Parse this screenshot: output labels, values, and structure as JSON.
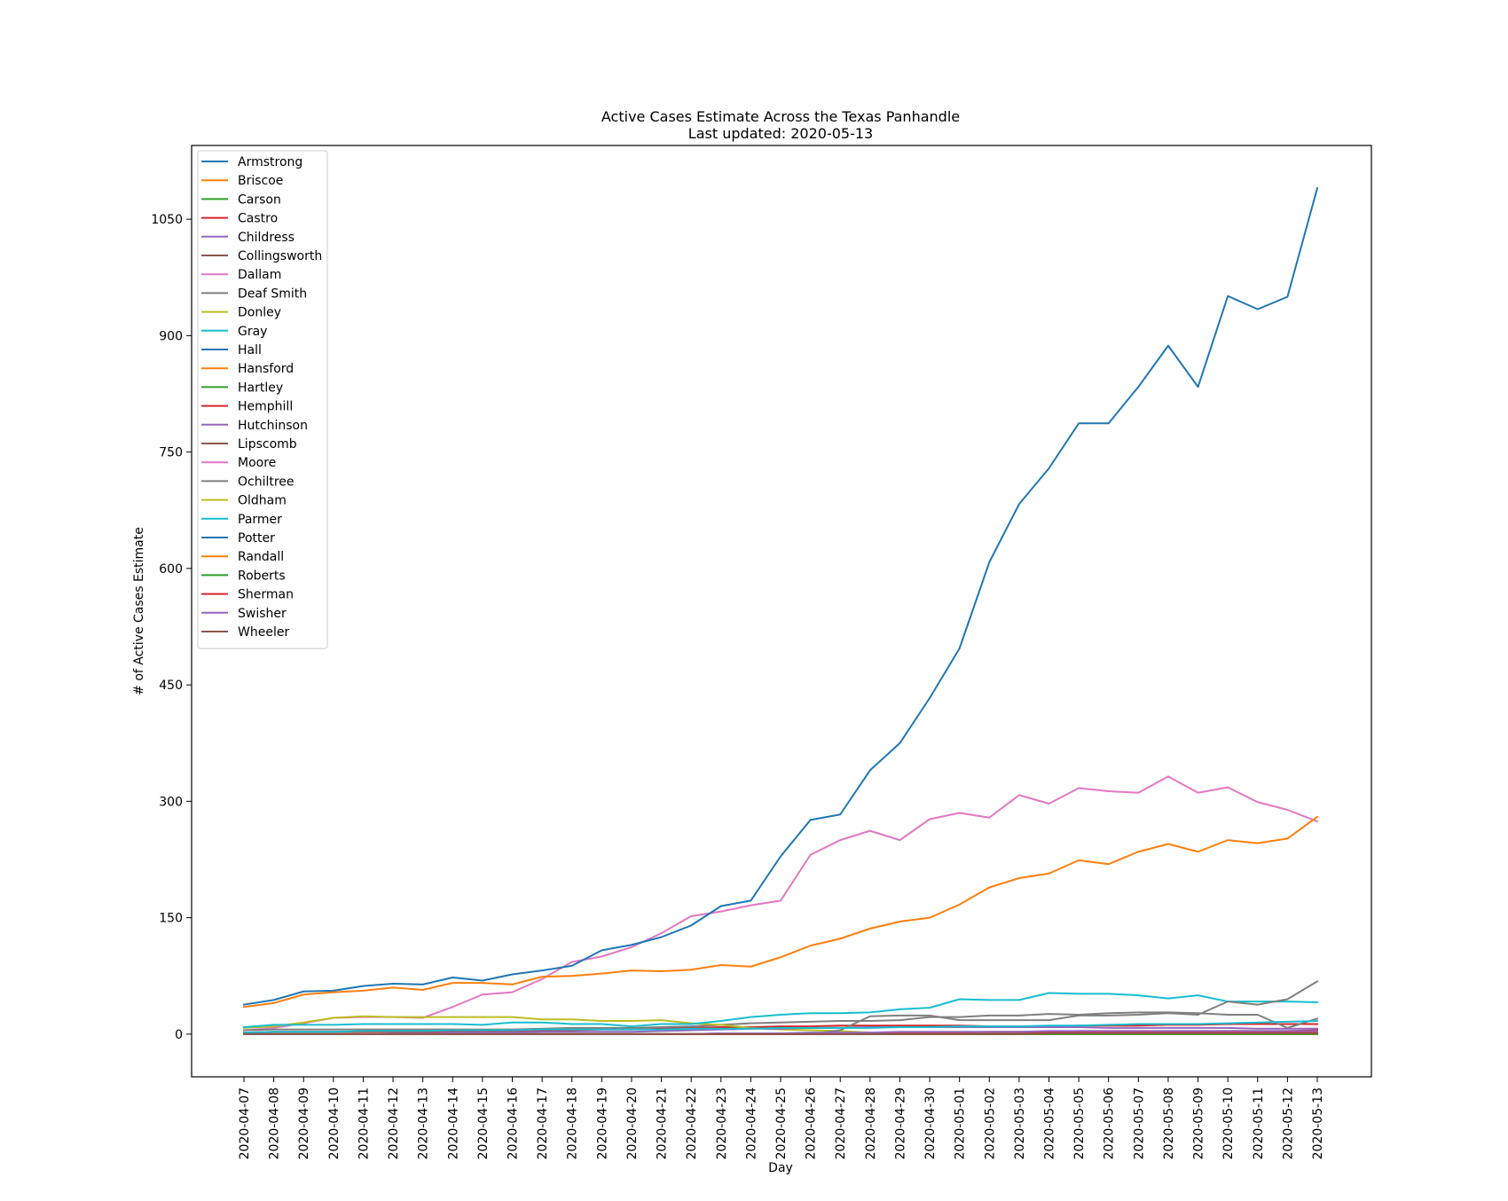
{
  "chart_data": {
    "type": "line",
    "title": "Active Cases Estimate Across the Texas Panhandle",
    "subtitle": "Last updated: 2020-05-13",
    "xlabel": "Day",
    "ylabel": "# of Active Cases Estimate",
    "ylim": [
      -55,
      1145
    ],
    "yticks": [
      0,
      150,
      300,
      450,
      600,
      750,
      900,
      1050
    ],
    "grid": false,
    "legend_position": "top-left",
    "x": [
      "2020-04-07",
      "2020-04-08",
      "2020-04-09",
      "2020-04-10",
      "2020-04-11",
      "2020-04-12",
      "2020-04-13",
      "2020-04-14",
      "2020-04-15",
      "2020-04-16",
      "2020-04-17",
      "2020-04-18",
      "2020-04-19",
      "2020-04-20",
      "2020-04-21",
      "2020-04-22",
      "2020-04-23",
      "2020-04-24",
      "2020-04-25",
      "2020-04-26",
      "2020-04-27",
      "2020-04-28",
      "2020-04-29",
      "2020-04-30",
      "2020-05-01",
      "2020-05-02",
      "2020-05-03",
      "2020-05-04",
      "2020-05-05",
      "2020-05-06",
      "2020-05-07",
      "2020-05-08",
      "2020-05-09",
      "2020-05-10",
      "2020-05-11",
      "2020-05-12",
      "2020-05-13"
    ],
    "series": [
      {
        "name": "Armstrong",
        "color": "#1f77b4",
        "values": [
          0,
          0,
          0,
          0,
          0,
          0,
          0,
          0,
          0,
          0,
          0,
          0,
          0,
          0,
          0,
          0,
          0,
          0,
          0,
          0,
          0,
          0,
          0,
          0,
          0,
          0,
          0,
          0,
          0,
          0,
          0,
          0,
          0,
          0,
          0,
          0,
          0
        ]
      },
      {
        "name": "Briscoe",
        "color": "#ff7f0e",
        "values": [
          0,
          0,
          0,
          0,
          0,
          0,
          0,
          0,
          0,
          0,
          0,
          0,
          0,
          0,
          0,
          0,
          0,
          0,
          0,
          0,
          0,
          0,
          0,
          0,
          0,
          0,
          0,
          0,
          0,
          0,
          0,
          0,
          0,
          0,
          0,
          0,
          0
        ]
      },
      {
        "name": "Carson",
        "color": "#2ca02c",
        "values": [
          0,
          0,
          0,
          0,
          0,
          0,
          0,
          0,
          0,
          0,
          0,
          0,
          0,
          0,
          0,
          0,
          0,
          0,
          0,
          0,
          0,
          0,
          1,
          1,
          1,
          1,
          1,
          1,
          1,
          1,
          1,
          1,
          1,
          1,
          1,
          1,
          1
        ]
      },
      {
        "name": "Castro",
        "color": "#d62728",
        "values": [
          2,
          3,
          3,
          3,
          3,
          3,
          3,
          3,
          4,
          4,
          5,
          5,
          6,
          6,
          7,
          8,
          9,
          9,
          10,
          10,
          11,
          11,
          11,
          11,
          11,
          10,
          10,
          10,
          11,
          11,
          11,
          12,
          12,
          13,
          13,
          13,
          13
        ]
      },
      {
        "name": "Childress",
        "color": "#9467bd",
        "values": [
          0,
          0,
          0,
          0,
          0,
          0,
          0,
          0,
          0,
          0,
          0,
          0,
          0,
          0,
          0,
          0,
          0,
          0,
          0,
          0,
          0,
          0,
          0,
          0,
          0,
          0,
          0,
          0,
          0,
          0,
          0,
          0,
          0,
          0,
          0,
          0,
          0
        ]
      },
      {
        "name": "Collingsworth",
        "color": "#8c564b",
        "values": [
          0,
          0,
          0,
          0,
          0,
          0,
          0,
          0,
          0,
          0,
          0,
          0,
          0,
          0,
          0,
          0,
          0,
          0,
          0,
          0,
          1,
          1,
          1,
          1,
          1,
          1,
          1,
          1,
          1,
          1,
          1,
          1,
          1,
          1,
          1,
          1,
          1
        ]
      },
      {
        "name": "Dallam",
        "color": "#e377c2",
        "values": [
          5,
          8,
          14,
          21,
          22,
          22,
          21,
          35,
          51,
          54,
          71,
          93,
          100,
          112,
          130,
          152,
          158,
          166,
          172,
          231,
          250,
          262,
          250,
          277,
          285,
          279,
          308,
          297,
          317,
          313,
          311,
          332,
          311,
          318,
          299,
          289,
          274
        ]
      },
      {
        "name": "Deaf Smith",
        "color": "#7f7f7f",
        "values": [
          5,
          6,
          6,
          6,
          6,
          6,
          6,
          6,
          6,
          6,
          7,
          8,
          8,
          8,
          9,
          10,
          12,
          14,
          15,
          16,
          17,
          17,
          18,
          22,
          22,
          24,
          24,
          26,
          25,
          27,
          28,
          28,
          27,
          25,
          25,
          8,
          20
        ]
      },
      {
        "name": "Donley",
        "color": "#bcbd22",
        "values": [
          8,
          10,
          15,
          21,
          23,
          22,
          22,
          22,
          22,
          22,
          19,
          19,
          17,
          17,
          18,
          14,
          12,
          8,
          6,
          5,
          4,
          2,
          1,
          0,
          0,
          0,
          0,
          0,
          0,
          0,
          0,
          0,
          0,
          0,
          0,
          0,
          0
        ]
      },
      {
        "name": "Gray",
        "color": "#17becf",
        "values": [
          9,
          12,
          12,
          12,
          13,
          13,
          13,
          13,
          12,
          15,
          15,
          13,
          13,
          10,
          13,
          13,
          17,
          22,
          25,
          27,
          27,
          28,
          32,
          34,
          45,
          44,
          44,
          53,
          52,
          52,
          50,
          46,
          50,
          42,
          42,
          42,
          41
        ]
      },
      {
        "name": "Hall",
        "color": "#1f77b4",
        "values": [
          0,
          0,
          0,
          0,
          0,
          0,
          0,
          0,
          0,
          0,
          0,
          0,
          0,
          0,
          0,
          0,
          0,
          0,
          0,
          0,
          0,
          0,
          0,
          0,
          0,
          0,
          0,
          0,
          0,
          0,
          0,
          0,
          0,
          0,
          0,
          0,
          0
        ]
      },
      {
        "name": "Hansford",
        "color": "#ff7f0e",
        "values": [
          0,
          0,
          0,
          0,
          0,
          0,
          0,
          0,
          0,
          0,
          0,
          0,
          0,
          0,
          0,
          0,
          0,
          0,
          0,
          0,
          0,
          1,
          1,
          1,
          1,
          1,
          1,
          1,
          1,
          1,
          1,
          1,
          1,
          1,
          1,
          1,
          1
        ]
      },
      {
        "name": "Hartley",
        "color": "#2ca02c",
        "values": [
          0,
          0,
          0,
          0,
          0,
          0,
          0,
          0,
          0,
          0,
          0,
          0,
          0,
          0,
          0,
          0,
          0,
          0,
          0,
          0,
          0,
          0,
          0,
          0,
          0,
          0,
          0,
          0,
          0,
          0,
          0,
          0,
          0,
          0,
          0,
          0,
          0
        ]
      },
      {
        "name": "Hemphill",
        "color": "#d62728",
        "values": [
          0,
          0,
          0,
          0,
          0,
          0,
          0,
          0,
          0,
          0,
          0,
          0,
          0,
          0,
          0,
          0,
          1,
          1,
          1,
          1,
          1,
          1,
          2,
          2,
          2,
          2,
          2,
          2,
          2,
          2,
          2,
          2,
          2,
          2,
          2,
          2,
          2
        ]
      },
      {
        "name": "Hutchinson",
        "color": "#9467bd",
        "values": [
          0,
          0,
          0,
          0,
          0,
          1,
          1,
          2,
          2,
          2,
          3,
          3,
          3,
          3,
          4,
          5,
          6,
          7,
          7,
          8,
          8,
          9,
          9,
          9,
          9,
          9,
          9,
          9,
          9,
          8,
          8,
          8,
          8,
          8,
          7,
          7,
          7
        ]
      },
      {
        "name": "Lipscomb",
        "color": "#8c564b",
        "values": [
          0,
          0,
          0,
          0,
          0,
          0,
          0,
          0,
          0,
          0,
          0,
          0,
          0,
          0,
          0,
          0,
          0,
          0,
          0,
          0,
          0,
          0,
          0,
          0,
          0,
          0,
          0,
          0,
          1,
          1,
          1,
          1,
          1,
          1,
          1,
          1,
          1
        ]
      },
      {
        "name": "Moore",
        "color": "#e377c2",
        "values": [
          0,
          0,
          0,
          0,
          0,
          0,
          0,
          0,
          0,
          0,
          0,
          0,
          0,
          0,
          0,
          0,
          0,
          0,
          0,
          0,
          0,
          0,
          0,
          0,
          0,
          0,
          0,
          0,
          0,
          0,
          0,
          0,
          0,
          0,
          0,
          0,
          0
        ]
      },
      {
        "name": "Ochiltree",
        "color": "#7f7f7f",
        "values": [
          0,
          0,
          0,
          0,
          0,
          0,
          0,
          0,
          0,
          0,
          0,
          0,
          0,
          0,
          0,
          0,
          0,
          0,
          0,
          0,
          5,
          23,
          24,
          24,
          18,
          18,
          18,
          18,
          24,
          24,
          25,
          27,
          25,
          42,
          38,
          45,
          68
        ]
      },
      {
        "name": "Oldham",
        "color": "#bcbd22",
        "values": [
          0,
          0,
          0,
          0,
          0,
          0,
          0,
          0,
          0,
          0,
          0,
          0,
          0,
          0,
          0,
          0,
          0,
          0,
          0,
          0,
          0,
          0,
          0,
          0,
          0,
          0,
          0,
          0,
          0,
          0,
          0,
          0,
          0,
          0,
          0,
          0,
          0
        ]
      },
      {
        "name": "Parmer",
        "color": "#17becf",
        "values": [
          2,
          3,
          3,
          3,
          4,
          4,
          4,
          5,
          5,
          5,
          6,
          6,
          6,
          6,
          6,
          7,
          7,
          7,
          8,
          8,
          8,
          8,
          9,
          9,
          10,
          10,
          10,
          11,
          11,
          12,
          13,
          13,
          13,
          14,
          15,
          16,
          17
        ]
      },
      {
        "name": "Potter",
        "color": "#1f77b4",
        "values": [
          38,
          44,
          55,
          56,
          62,
          65,
          64,
          73,
          69,
          77,
          82,
          88,
          108,
          115,
          125,
          140,
          165,
          172,
          229,
          276,
          283,
          340,
          375,
          433,
          497,
          608,
          683,
          729,
          787,
          787,
          834,
          887,
          834,
          951,
          934,
          950,
          1090
        ]
      },
      {
        "name": "Randall",
        "color": "#ff7f0e",
        "values": [
          35,
          40,
          51,
          54,
          56,
          60,
          57,
          66,
          66,
          64,
          74,
          75,
          78,
          82,
          81,
          83,
          89,
          87,
          99,
          114,
          123,
          136,
          145,
          150,
          167,
          189,
          201,
          207,
          224,
          219,
          235,
          245,
          235,
          250,
          246,
          252,
          280
        ]
      },
      {
        "name": "Roberts",
        "color": "#2ca02c",
        "values": [
          0,
          0,
          0,
          0,
          0,
          0,
          0,
          0,
          0,
          0,
          0,
          0,
          0,
          0,
          0,
          0,
          0,
          0,
          0,
          0,
          0,
          0,
          0,
          0,
          0,
          0,
          0,
          0,
          0,
          0,
          0,
          0,
          0,
          0,
          0,
          0,
          0
        ]
      },
      {
        "name": "Sherman",
        "color": "#d62728",
        "values": [
          0,
          0,
          0,
          0,
          0,
          0,
          0,
          0,
          0,
          0,
          0,
          0,
          0,
          0,
          0,
          0,
          0,
          0,
          0,
          0,
          0,
          1,
          1,
          2,
          2,
          3,
          3,
          3,
          4,
          4,
          4,
          4,
          4,
          4,
          4,
          4,
          5
        ]
      },
      {
        "name": "Swisher",
        "color": "#9467bd",
        "values": [
          0,
          0,
          0,
          0,
          0,
          0,
          0,
          0,
          0,
          0,
          0,
          0,
          0,
          0,
          0,
          0,
          1,
          1,
          1,
          2,
          2,
          2,
          3,
          3,
          3,
          3,
          3,
          4,
          4,
          4,
          4,
          4,
          4,
          4,
          4,
          4,
          4
        ]
      },
      {
        "name": "Wheeler",
        "color": "#8c564b",
        "values": [
          0,
          0,
          0,
          0,
          0,
          0,
          0,
          0,
          0,
          0,
          0,
          0,
          0,
          0,
          0,
          0,
          0,
          0,
          0,
          0,
          0,
          0,
          0,
          0,
          0,
          0,
          0,
          1,
          1,
          1,
          1,
          1,
          1,
          1,
          1,
          1,
          1
        ]
      }
    ]
  }
}
